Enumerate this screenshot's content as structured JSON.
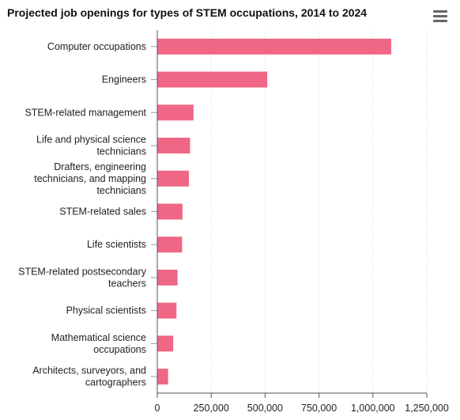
{
  "chart_data": {
    "type": "bar",
    "orientation": "horizontal",
    "title": "Projected job openings for types of STEM occupations, 2014 to 2024",
    "categories": [
      "Computer occupations",
      "Engineers",
      "STEM-related management",
      "Life and physical science technicians",
      "Drafters, engineering technicians, and mapping technicians",
      "STEM-related sales",
      "Life scientists",
      "STEM-related postsecondary teachers",
      "Physical scientists",
      "Mathematical science occupations",
      "Architects, surveyors, and cartographers"
    ],
    "category_lines": [
      [
        "Computer occupations"
      ],
      [
        "Engineers"
      ],
      [
        "STEM-related management"
      ],
      [
        "Life and physical science",
        "technicians"
      ],
      [
        "Drafters, engineering",
        "technicians, and mapping",
        "technicians"
      ],
      [
        "STEM-related sales"
      ],
      [
        "Life scientists"
      ],
      [
        "STEM-related postsecondary",
        "teachers"
      ],
      [
        "Physical scientists"
      ],
      [
        "Mathematical science",
        "occupations"
      ],
      [
        "Architects, surveyors, and",
        "cartographers"
      ]
    ],
    "values": [
      1085000,
      510000,
      168000,
      152000,
      147000,
      117000,
      115000,
      94000,
      89000,
      74000,
      50000
    ],
    "xlim": [
      0,
      1250000
    ],
    "x_ticks": [
      0,
      250000,
      500000,
      750000,
      1000000,
      1250000
    ],
    "x_tick_labels": [
      "0",
      "250,000",
      "500,000",
      "750,000",
      "1,000,000",
      "1,250,000"
    ],
    "grid": true,
    "bar_color": "#f06786"
  },
  "menu": {
    "icon": "hamburger-menu-icon"
  }
}
